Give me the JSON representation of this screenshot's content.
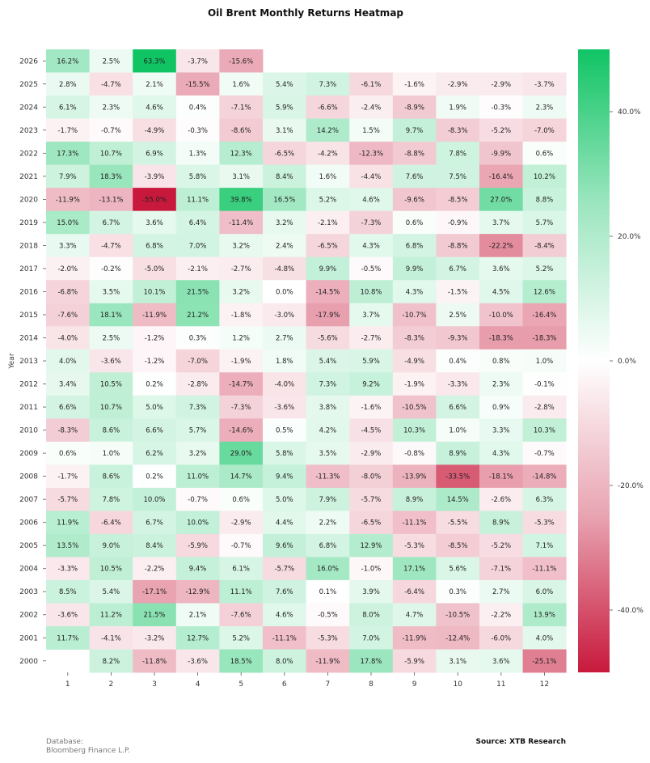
{
  "footer": {
    "database_label": "Database:",
    "database_value": "Bloomberg Finance L.P.",
    "source": "Source: XTB Research"
  },
  "chart_data": {
    "type": "heatmap",
    "title": "Oil Brent Monthly Returns Heatmap",
    "xlabel": "",
    "ylabel": "Year",
    "x": [
      "1",
      "2",
      "3",
      "4",
      "5",
      "6",
      "7",
      "8",
      "9",
      "10",
      "11",
      "12"
    ],
    "y": [
      "2026",
      "2025",
      "2024",
      "2023",
      "2022",
      "2021",
      "2020",
      "2019",
      "2018",
      "2017",
      "2016",
      "2015",
      "2014",
      "2013",
      "2012",
      "2011",
      "2010",
      "2009",
      "2008",
      "2007",
      "2006",
      "2005",
      "2004",
      "2003",
      "2002",
      "2001",
      "2000"
    ],
    "values": [
      [
        16.2,
        2.5,
        63.3,
        -3.7,
        -15.6,
        null,
        null,
        null,
        null,
        null,
        null,
        null
      ],
      [
        2.8,
        -4.7,
        2.1,
        -15.5,
        1.6,
        5.4,
        7.3,
        -6.1,
        -1.6,
        -2.9,
        -2.9,
        -3.7
      ],
      [
        6.1,
        2.3,
        4.6,
        0.4,
        -7.1,
        5.9,
        -6.6,
        -2.4,
        -8.9,
        1.9,
        -0.3,
        2.3
      ],
      [
        -1.7,
        -0.7,
        -4.9,
        -0.3,
        -8.6,
        3.1,
        14.2,
        1.5,
        9.7,
        -8.3,
        -5.2,
        -7.0
      ],
      [
        17.3,
        10.7,
        6.9,
        1.3,
        12.3,
        -6.5,
        -4.2,
        -12.3,
        -8.8,
        7.8,
        -9.9,
        0.6
      ],
      [
        7.9,
        18.3,
        -3.9,
        5.8,
        3.1,
        8.4,
        1.6,
        -4.4,
        7.6,
        7.5,
        -16.4,
        10.2
      ],
      [
        -11.9,
        -13.1,
        -55.0,
        11.1,
        39.8,
        16.5,
        5.2,
        4.6,
        -9.6,
        -8.5,
        27.0,
        8.8
      ],
      [
        15.0,
        6.7,
        3.6,
        6.4,
        -11.4,
        3.2,
        -2.1,
        -7.3,
        0.6,
        -0.9,
        3.7,
        5.7
      ],
      [
        3.3,
        -4.7,
        6.8,
        7.0,
        3.2,
        2.4,
        -6.5,
        4.3,
        6.8,
        -8.8,
        -22.2,
        -8.4
      ],
      [
        -2.0,
        -0.2,
        -5.0,
        -2.1,
        -2.7,
        -4.8,
        9.9,
        -0.5,
        9.9,
        6.7,
        3.6,
        5.2
      ],
      [
        -6.8,
        3.5,
        10.1,
        21.5,
        3.2,
        -0.0,
        -14.5,
        10.8,
        4.3,
        -1.5,
        4.5,
        12.6
      ],
      [
        -7.6,
        18.1,
        -11.9,
        21.2,
        -1.8,
        -3.0,
        -17.9,
        3.7,
        -10.7,
        2.5,
        -10.0,
        -16.4
      ],
      [
        -4.0,
        2.5,
        -1.2,
        0.3,
        1.2,
        2.7,
        -5.6,
        -2.7,
        -8.3,
        -9.3,
        -18.3,
        -18.3
      ],
      [
        4.0,
        -3.6,
        -1.2,
        -7.0,
        -1.9,
        1.8,
        5.4,
        5.9,
        -4.9,
        0.4,
        0.8,
        1.0
      ],
      [
        3.4,
        10.5,
        0.2,
        -2.8,
        -14.7,
        -4.0,
        7.3,
        9.2,
        -1.9,
        -3.3,
        2.3,
        -0.1
      ],
      [
        6.6,
        10.7,
        5.0,
        7.3,
        -7.3,
        -3.6,
        3.8,
        -1.6,
        -10.5,
        6.6,
        0.9,
        -2.8
      ],
      [
        -8.3,
        8.6,
        6.6,
        5.7,
        -14.6,
        0.5,
        4.2,
        -4.5,
        10.3,
        1.0,
        3.3,
        10.3
      ],
      [
        0.6,
        1.0,
        6.2,
        3.2,
        29.0,
        5.8,
        3.5,
        -2.9,
        -0.8,
        8.9,
        4.3,
        -0.7
      ],
      [
        -1.7,
        8.6,
        0.2,
        11.0,
        14.7,
        9.4,
        -11.3,
        -8.0,
        -13.9,
        -33.5,
        -18.1,
        -14.8
      ],
      [
        -5.7,
        7.8,
        10.0,
        -0.7,
        0.6,
        5.0,
        7.9,
        -5.7,
        8.9,
        14.5,
        -2.6,
        6.3
      ],
      [
        11.9,
        -6.4,
        6.7,
        10.0,
        -2.9,
        4.4,
        2.2,
        -6.5,
        -11.1,
        -5.5,
        8.9,
        -5.3
      ],
      [
        13.5,
        9.0,
        8.4,
        -5.9,
        -0.7,
        9.6,
        6.8,
        12.9,
        -5.3,
        -8.5,
        -5.2,
        7.1
      ],
      [
        -3.3,
        10.5,
        -2.2,
        9.4,
        6.1,
        -5.7,
        16.0,
        -1.0,
        17.1,
        5.6,
        -7.1,
        -11.1
      ],
      [
        8.5,
        5.4,
        -17.1,
        -12.9,
        11.1,
        7.6,
        0.1,
        3.9,
        -6.4,
        0.3,
        2.7,
        6.0
      ],
      [
        -3.6,
        11.2,
        21.5,
        2.1,
        -7.6,
        4.6,
        -0.5,
        8.0,
        4.7,
        -10.5,
        -2.2,
        13.9
      ],
      [
        11.7,
        -4.1,
        -3.2,
        12.7,
        5.2,
        -11.1,
        -5.3,
        7.0,
        -11.9,
        -12.4,
        -6.0,
        4.0
      ],
      [
        null,
        8.2,
        -11.8,
        -3.6,
        18.5,
        8.0,
        -11.9,
        17.8,
        -5.9,
        3.1,
        3.6,
        -25.1
      ]
    ],
    "value_suffix": "%",
    "color_scale": {
      "min": -50,
      "max": 50,
      "low_color": "#c8193c",
      "mid_color": "#ffffff",
      "high_color": "#10c464"
    },
    "colorbar_ticks": [
      {
        "value": 40,
        "label": "40.0%"
      },
      {
        "value": 20,
        "label": "20.0%"
      },
      {
        "value": 0,
        "label": "0.0%"
      },
      {
        "value": -20,
        "label": "-20.0%"
      },
      {
        "value": -40,
        "label": "-40.0%"
      }
    ],
    "legend": "colorbar-right",
    "grid": false
  }
}
